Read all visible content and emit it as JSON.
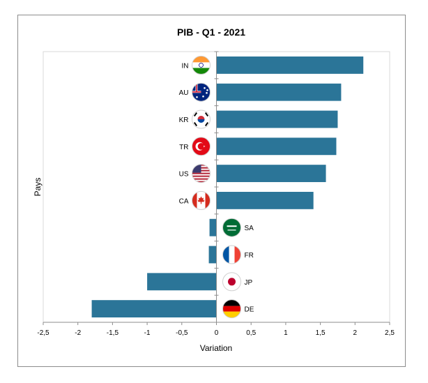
{
  "chart_data": {
    "type": "bar",
    "orientation": "horizontal",
    "title": "PIB - Q1 - 2021",
    "xlabel": "Variation",
    "ylabel": "Pays",
    "xlim": [
      -2.5,
      2.5
    ],
    "xticks": [
      "-2,5",
      "-2",
      "-1,5",
      "-1",
      "-0,5",
      "0",
      "0,5",
      "1",
      "1,5",
      "2",
      "2,5"
    ],
    "categories": [
      "IN",
      "AU",
      "KR",
      "TR",
      "US",
      "CA",
      "SA",
      "FR",
      "JP",
      "DE"
    ],
    "values": [
      2.12,
      1.8,
      1.75,
      1.73,
      1.58,
      1.4,
      -0.1,
      -0.11,
      -1.0,
      -1.8
    ],
    "bar_color": "#2b7598",
    "flags": [
      "india-flag-icon",
      "australia-flag-icon",
      "south-korea-flag-icon",
      "turkey-flag-icon",
      "usa-flag-icon",
      "canada-flag-icon",
      "saudi-arabia-flag-icon",
      "france-flag-icon",
      "japan-flag-icon",
      "germany-flag-icon"
    ],
    "grid": false
  }
}
